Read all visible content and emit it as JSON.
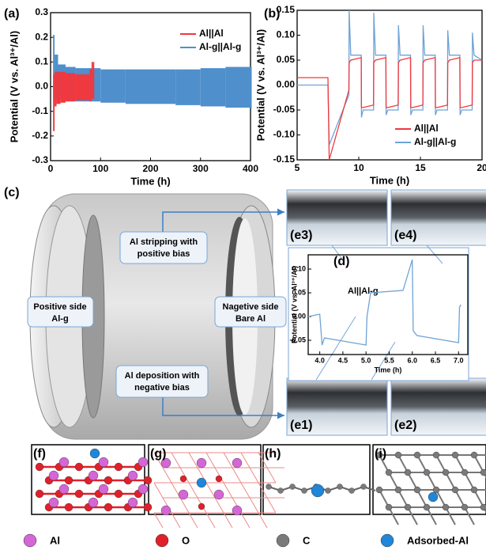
{
  "chart_data": [
    {
      "type": "band",
      "label": "(a)",
      "xlabel": "Time (h)",
      "ylabel": "Potential (V vs. Al³⁺/Al)",
      "xlim": [
        0,
        400
      ],
      "ylim": [
        -0.3,
        0.3
      ],
      "xticks": [
        0,
        100,
        200,
        300,
        400
      ],
      "yticks": [
        -0.3,
        -0.2,
        -0.1,
        {
          "value": 0,
          "label": "0.0"
        },
        0.1,
        0.2,
        0.3
      ],
      "legend": "upper right",
      "series": [
        {
          "name": "Al||Al",
          "color": "#f0383f",
          "x": [
            5,
            8,
            12,
            20,
            30,
            40,
            50,
            60,
            70,
            78,
            82,
            85
          ],
          "values": [
            0.05,
            0.06,
            0.06,
            0.06,
            0.055,
            0.055,
            0.05,
            0.05,
            0.05,
            0.07,
            0.1,
            0.1
          ],
          "low": [
            -0.18,
            -0.08,
            -0.07,
            -0.065,
            -0.06,
            -0.06,
            -0.055,
            -0.055,
            -0.055,
            -0.06,
            -0.05,
            -0.05
          ]
        },
        {
          "name": "Al-g||Al-g",
          "color": "#4f8fcb",
          "x": [
            5,
            8,
            15,
            30,
            50,
            100,
            150,
            200,
            250,
            300,
            350,
            400
          ],
          "values": [
            0.21,
            0.13,
            0.09,
            0.08,
            0.075,
            0.07,
            0.07,
            0.07,
            0.07,
            0.075,
            0.08,
            0.08
          ],
          "low": [
            -0.06,
            -0.05,
            -0.05,
            -0.055,
            -0.06,
            -0.065,
            -0.07,
            -0.07,
            -0.075,
            -0.08,
            -0.085,
            -0.09
          ]
        }
      ]
    },
    {
      "type": "line",
      "label": "(b)",
      "xlabel": "Time (h)",
      "ylabel": "Potential (V vs. Al³⁺/Al)",
      "xlim": [
        5,
        20
      ],
      "ylim": [
        -0.15,
        0.15
      ],
      "xticks": [
        5,
        10,
        15,
        20
      ],
      "yticks": [
        -0.15,
        {
          "value": -0.1,
          "label": "-0.10"
        },
        -0.05,
        {
          "value": 0,
          "label": "0.00"
        },
        0.05,
        {
          "value": 0.1,
          "label": "0.10"
        },
        0.15
      ],
      "legend": "lower right",
      "series": [
        {
          "name": "Al||Al",
          "color": "#f0383f",
          "x": [
            5,
            7.5,
            7.6,
            9.2,
            9.22,
            9.35,
            10.2,
            10.22,
            10.35,
            11.2,
            11.22,
            11.35,
            12.2,
            12.22,
            12.35,
            13.2,
            13.22,
            13.35,
            14.2,
            14.22,
            14.35,
            15.2,
            15.22,
            15.35,
            16.2,
            16.22,
            16.35,
            17.2,
            17.22,
            17.35,
            18.2,
            18.22,
            18.35,
            19.2,
            19.22,
            19.35,
            20
          ],
          "values": [
            0.015,
            0.015,
            -0.15,
            -0.01,
            0.045,
            0.05,
            0.055,
            -0.045,
            -0.045,
            -0.04,
            0.045,
            0.05,
            0.055,
            -0.045,
            -0.045,
            -0.04,
            0.045,
            0.05,
            0.055,
            -0.045,
            -0.045,
            -0.04,
            0.045,
            0.05,
            0.055,
            -0.045,
            -0.045,
            -0.04,
            0.045,
            0.05,
            0.055,
            -0.045,
            -0.045,
            -0.04,
            0.045,
            0.05,
            0.05
          ]
        },
        {
          "name": "Al-g||Al-g",
          "color": "#6fa3d6",
          "x": [
            5,
            7.5,
            7.6,
            9.2,
            9.22,
            9.35,
            10.2,
            10.22,
            10.35,
            11.2,
            11.22,
            11.35,
            12.2,
            12.22,
            12.35,
            13.2,
            13.22,
            13.35,
            14.2,
            14.22,
            14.35,
            15.2,
            15.22,
            15.35,
            16.2,
            16.22,
            16.35,
            17.2,
            17.22,
            17.35,
            18.2,
            18.22,
            18.35,
            19.2,
            19.22,
            19.35,
            20
          ],
          "values": [
            0.0,
            0.0,
            -0.12,
            -0.02,
            0.15,
            0.06,
            0.06,
            -0.065,
            -0.05,
            -0.05,
            0.145,
            0.06,
            0.06,
            -0.06,
            -0.05,
            -0.05,
            0.12,
            0.06,
            0.06,
            -0.06,
            -0.05,
            -0.05,
            0.12,
            0.06,
            0.06,
            -0.06,
            -0.05,
            -0.05,
            0.11,
            0.06,
            0.06,
            -0.06,
            -0.05,
            -0.05,
            0.105,
            0.06,
            0.05
          ]
        }
      ]
    },
    {
      "type": "line",
      "label": "(d)",
      "xlabel": "Time (h)",
      "ylabel": "Potential (V vs. Al³⁺/Al)",
      "annotation": "Al||Al-g",
      "xlim": [
        3.75,
        7.2
      ],
      "ylim": [
        -0.08,
        0.13
      ],
      "xticks": [
        {
          "value": 4,
          "label": "4.0"
        },
        4.5,
        {
          "value": 5,
          "label": "5.0"
        },
        5.5,
        {
          "value": 6,
          "label": "6.0"
        },
        6.5,
        {
          "value": 7,
          "label": "7.0"
        }
      ],
      "yticks": [
        -0.05,
        {
          "value": 0,
          "label": "0.00"
        },
        0.05,
        {
          "value": 0.1,
          "label": "0.10"
        }
      ],
      "series": [
        {
          "color": "#6fa3d6",
          "x": [
            3.75,
            4.0,
            4.05,
            4.1,
            5.0,
            5.02,
            5.1,
            5.8,
            6.0,
            6.02,
            6.1,
            7.0,
            7.02,
            7.05
          ],
          "values": [
            0.0,
            0.005,
            -0.06,
            -0.045,
            -0.06,
            0.0,
            0.05,
            0.055,
            0.12,
            -0.03,
            -0.04,
            -0.055,
            0.02,
            0.025
          ]
        }
      ]
    }
  ],
  "diagram": {
    "label": "(c)",
    "stripping": [
      "Al stripping with",
      "positive bias"
    ],
    "positive": [
      "Positive side",
      "Al-g"
    ],
    "negative": [
      "Nagetive side",
      "Bare Al"
    ],
    "deposition": [
      "Al deposition with",
      "negative bias"
    ],
    "images": [
      "(e1)",
      "(e2)",
      "(e3)",
      "(e4)"
    ]
  },
  "structures": {
    "labels": [
      "(f)",
      "(g)",
      "(h)",
      "(i)"
    ]
  },
  "atom_legend": [
    {
      "label": "Al",
      "color": "#d466d6"
    },
    {
      "label": "O",
      "color": "#e0202a"
    },
    {
      "label": "C",
      "color": "#7a7a7a"
    },
    {
      "label": "Adsorbed-Al",
      "color": "#1f86d8"
    }
  ]
}
